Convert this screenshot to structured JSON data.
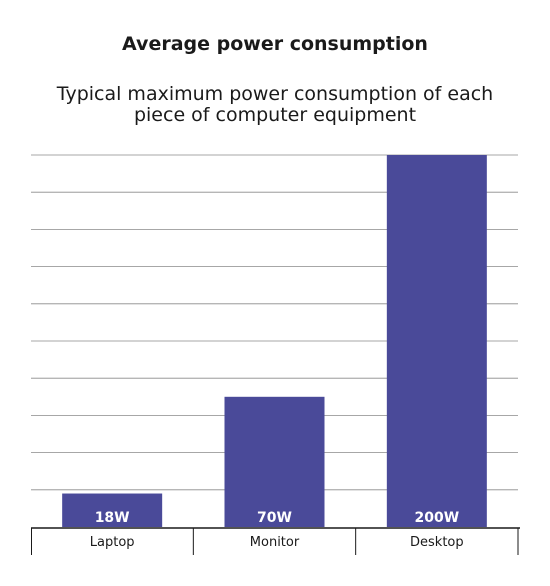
{
  "chart_data": {
    "type": "bar",
    "title": "Average power consumption",
    "subtitle": "Typical maximum power consumption of each piece of computer equipment",
    "categories": [
      "Laptop",
      "Monitor",
      "Desktop"
    ],
    "values": [
      18,
      70,
      200
    ],
    "data_labels": [
      "18W",
      "70W",
      "200W"
    ],
    "ylim": [
      0,
      200
    ],
    "y_gridlines": 10,
    "grid": true,
    "xlabel": "",
    "ylabel": "",
    "colors": {
      "bar": "#4a4a99",
      "grid": "#8a8a8a",
      "axis": "#1a1a1a"
    }
  }
}
